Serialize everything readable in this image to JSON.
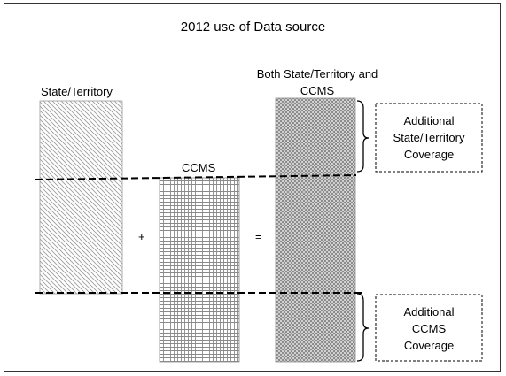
{
  "diagram": {
    "title": "2012 use of Data source",
    "columns": {
      "state": {
        "label": "State/Territory"
      },
      "ccms": {
        "label": "CCMS"
      },
      "both": {
        "label_line1": "Both State/Territory and",
        "label_line2": "CCMS"
      }
    },
    "operators": {
      "plus": "+",
      "equals": "="
    },
    "annotations": {
      "additional_state": {
        "line1": "Additional",
        "line2": "State/Territory",
        "line3": "Coverage"
      },
      "additional_ccms": {
        "line1": "Additional",
        "line2": "CCMS",
        "line3": "Coverage"
      }
    }
  }
}
